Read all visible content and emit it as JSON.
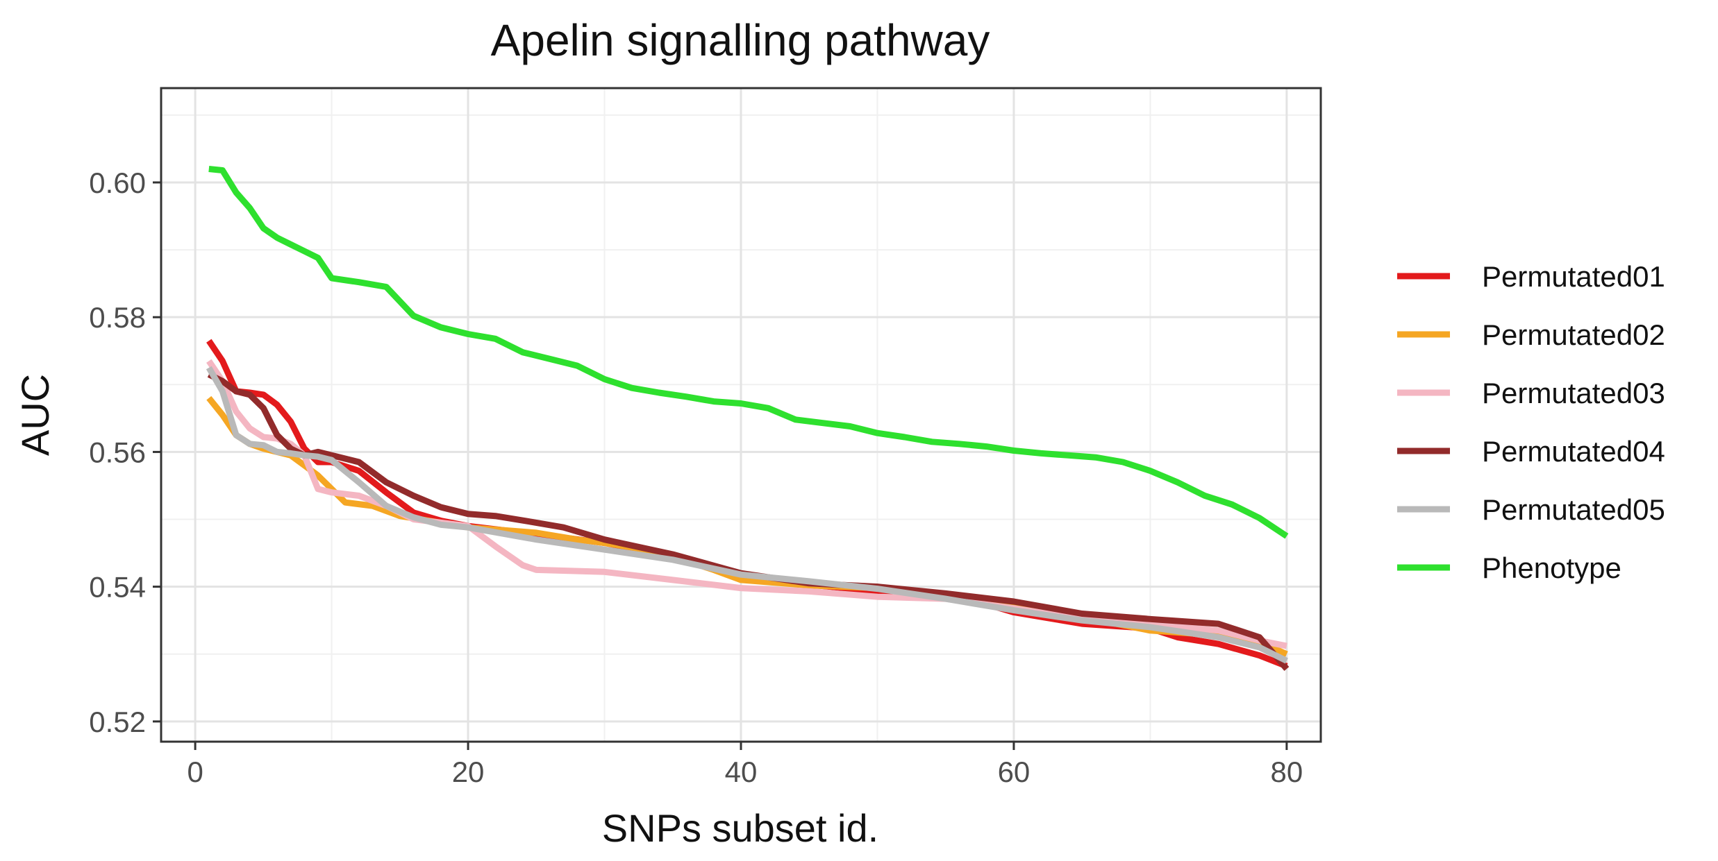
{
  "chart_data": {
    "type": "line",
    "title": "Apelin signalling pathway",
    "xlabel": "SNPs subset id.",
    "ylabel": "AUC",
    "xlim": [
      -2.5,
      82.5
    ],
    "ylim": [
      0.517,
      0.614
    ],
    "x_ticks": [
      0,
      20,
      40,
      60,
      80
    ],
    "x_tick_labels": [
      "0",
      "20",
      "40",
      "60",
      "80"
    ],
    "y_ticks": [
      0.52,
      0.54,
      0.56,
      0.58,
      0.6
    ],
    "y_tick_labels": [
      "0.52",
      "0.54",
      "0.56",
      "0.58",
      "0.60"
    ],
    "grid": true,
    "legend_position": "right",
    "series": [
      {
        "name": "Permutated01",
        "color": "#e31a1c",
        "points": [
          [
            1,
            0.5765
          ],
          [
            2,
            0.5735
          ],
          [
            3,
            0.569
          ],
          [
            4,
            0.5688
          ],
          [
            5,
            0.5685
          ],
          [
            6,
            0.567
          ],
          [
            7,
            0.5645
          ],
          [
            8,
            0.5605
          ],
          [
            9,
            0.5585
          ],
          [
            10,
            0.5585
          ],
          [
            12,
            0.5572
          ],
          [
            14,
            0.554
          ],
          [
            16,
            0.551
          ],
          [
            18,
            0.5498
          ],
          [
            20,
            0.549
          ],
          [
            25,
            0.5478
          ],
          [
            30,
            0.5465
          ],
          [
            35,
            0.5445
          ],
          [
            40,
            0.5415
          ],
          [
            45,
            0.5403
          ],
          [
            50,
            0.5393
          ],
          [
            55,
            0.5385
          ],
          [
            57,
            0.538
          ],
          [
            60,
            0.5362
          ],
          [
            65,
            0.5345
          ],
          [
            70,
            0.5338
          ],
          [
            72,
            0.5325
          ],
          [
            75,
            0.5315
          ],
          [
            78,
            0.5298
          ],
          [
            80,
            0.5282
          ]
        ]
      },
      {
        "name": "Permutated02",
        "color": "#f5a623",
        "points": [
          [
            1,
            0.568
          ],
          [
            2,
            0.5655
          ],
          [
            3,
            0.5625
          ],
          [
            4,
            0.5612
          ],
          [
            5,
            0.5605
          ],
          [
            7,
            0.5595
          ],
          [
            8,
            0.558
          ],
          [
            9,
            0.5565
          ],
          [
            10,
            0.5545
          ],
          [
            11,
            0.5525
          ],
          [
            13,
            0.552
          ],
          [
            15,
            0.5505
          ],
          [
            18,
            0.5495
          ],
          [
            20,
            0.5488
          ],
          [
            25,
            0.548
          ],
          [
            28,
            0.547
          ],
          [
            30,
            0.5465
          ],
          [
            33,
            0.5455
          ],
          [
            35,
            0.5445
          ],
          [
            38,
            0.5425
          ],
          [
            40,
            0.541
          ],
          [
            45,
            0.5402
          ],
          [
            50,
            0.5398
          ],
          [
            55,
            0.5385
          ],
          [
            60,
            0.5375
          ],
          [
            65,
            0.5355
          ],
          [
            70,
            0.5335
          ],
          [
            75,
            0.5328
          ],
          [
            78,
            0.5318
          ],
          [
            80,
            0.53
          ]
        ]
      },
      {
        "name": "Permutated03",
        "color": "#f4b6c2",
        "points": [
          [
            1,
            0.5735
          ],
          [
            2,
            0.5705
          ],
          [
            3,
            0.566
          ],
          [
            4,
            0.5635
          ],
          [
            5,
            0.5622
          ],
          [
            6,
            0.562
          ],
          [
            7,
            0.5612
          ],
          [
            8,
            0.5595
          ],
          [
            9,
            0.5545
          ],
          [
            10,
            0.554
          ],
          [
            12,
            0.5535
          ],
          [
            14,
            0.552
          ],
          [
            16,
            0.55
          ],
          [
            18,
            0.5495
          ],
          [
            20,
            0.549
          ],
          [
            22,
            0.546
          ],
          [
            24,
            0.5432
          ],
          [
            25,
            0.5425
          ],
          [
            30,
            0.5422
          ],
          [
            35,
            0.541
          ],
          [
            40,
            0.5398
          ],
          [
            45,
            0.5393
          ],
          [
            50,
            0.5385
          ],
          [
            55,
            0.5382
          ],
          [
            60,
            0.5368
          ],
          [
            65,
            0.5352
          ],
          [
            70,
            0.5345
          ],
          [
            75,
            0.5335
          ],
          [
            78,
            0.532
          ],
          [
            80,
            0.5312
          ]
        ]
      },
      {
        "name": "Permutated04",
        "color": "#922b2b",
        "points": [
          [
            1,
            0.5715
          ],
          [
            2,
            0.5705
          ],
          [
            3,
            0.569
          ],
          [
            4,
            0.5685
          ],
          [
            5,
            0.5665
          ],
          [
            6,
            0.5625
          ],
          [
            7,
            0.5605
          ],
          [
            8,
            0.5595
          ],
          [
            9,
            0.56
          ],
          [
            10,
            0.5595
          ],
          [
            12,
            0.5585
          ],
          [
            14,
            0.5555
          ],
          [
            16,
            0.5535
          ],
          [
            18,
            0.5518
          ],
          [
            20,
            0.5508
          ],
          [
            22,
            0.5505
          ],
          [
            25,
            0.5495
          ],
          [
            27,
            0.5488
          ],
          [
            30,
            0.547
          ],
          [
            35,
            0.5448
          ],
          [
            40,
            0.542
          ],
          [
            45,
            0.5405
          ],
          [
            50,
            0.54
          ],
          [
            55,
            0.539
          ],
          [
            60,
            0.5378
          ],
          [
            65,
            0.536
          ],
          [
            70,
            0.5352
          ],
          [
            75,
            0.5345
          ],
          [
            78,
            0.5325
          ],
          [
            80,
            0.5278
          ]
        ]
      },
      {
        "name": "Permutated05",
        "color": "#b9b9b9",
        "points": [
          [
            1,
            0.5725
          ],
          [
            2,
            0.569
          ],
          [
            3,
            0.5625
          ],
          [
            4,
            0.5612
          ],
          [
            5,
            0.561
          ],
          [
            6,
            0.56
          ],
          [
            7,
            0.5598
          ],
          [
            8,
            0.5595
          ],
          [
            9,
            0.5593
          ],
          [
            10,
            0.5588
          ],
          [
            12,
            0.5555
          ],
          [
            14,
            0.552
          ],
          [
            16,
            0.5503
          ],
          [
            18,
            0.5492
          ],
          [
            20,
            0.5488
          ],
          [
            25,
            0.547
          ],
          [
            30,
            0.5455
          ],
          [
            35,
            0.544
          ],
          [
            40,
            0.5418
          ],
          [
            45,
            0.5408
          ],
          [
            50,
            0.5397
          ],
          [
            55,
            0.5382
          ],
          [
            60,
            0.5365
          ],
          [
            65,
            0.535
          ],
          [
            70,
            0.534
          ],
          [
            75,
            0.5325
          ],
          [
            78,
            0.531
          ],
          [
            80,
            0.529
          ]
        ]
      },
      {
        "name": "Phenotype",
        "color": "#2ee02e",
        "points": [
          [
            1,
            0.602
          ],
          [
            2,
            0.6018
          ],
          [
            3,
            0.5985
          ],
          [
            4,
            0.5962
          ],
          [
            5,
            0.5932
          ],
          [
            6,
            0.5918
          ],
          [
            7,
            0.5908
          ],
          [
            8,
            0.5898
          ],
          [
            9,
            0.5888
          ],
          [
            10,
            0.5858
          ],
          [
            12,
            0.5852
          ],
          [
            14,
            0.5845
          ],
          [
            16,
            0.5802
          ],
          [
            18,
            0.5785
          ],
          [
            20,
            0.5775
          ],
          [
            22,
            0.5768
          ],
          [
            24,
            0.5748
          ],
          [
            26,
            0.5738
          ],
          [
            28,
            0.5728
          ],
          [
            30,
            0.5708
          ],
          [
            32,
            0.5695
          ],
          [
            34,
            0.5688
          ],
          [
            36,
            0.5682
          ],
          [
            38,
            0.5675
          ],
          [
            40,
            0.5672
          ],
          [
            42,
            0.5665
          ],
          [
            44,
            0.5648
          ],
          [
            46,
            0.5643
          ],
          [
            48,
            0.5638
          ],
          [
            50,
            0.5628
          ],
          [
            52,
            0.5622
          ],
          [
            54,
            0.5615
          ],
          [
            56,
            0.5612
          ],
          [
            58,
            0.5608
          ],
          [
            60,
            0.5602
          ],
          [
            62,
            0.5598
          ],
          [
            64,
            0.5595
          ],
          [
            66,
            0.5592
          ],
          [
            68,
            0.5585
          ],
          [
            70,
            0.5572
          ],
          [
            72,
            0.5555
          ],
          [
            74,
            0.5535
          ],
          [
            76,
            0.5522
          ],
          [
            78,
            0.5502
          ],
          [
            80,
            0.5475
          ]
        ]
      }
    ]
  }
}
